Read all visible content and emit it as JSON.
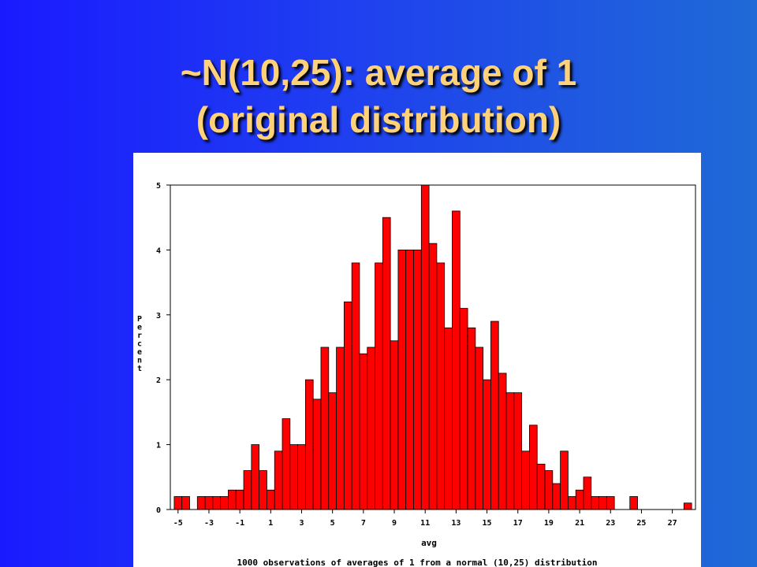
{
  "slide": {
    "title_line1": "~N(10,25): average of 1",
    "title_line2": "(original distribution)"
  },
  "colors": {
    "bar": "#ff0000",
    "bar_stroke": "#000000",
    "title": "#ffd27a"
  },
  "chart_data": {
    "type": "bar",
    "xlabel": "avg",
    "ylabel": "Percent",
    "footnote": "1000 observations of averages of 1 from a normal (10,25) distribution",
    "x_axis": {
      "min": -5.5,
      "max": 28.5,
      "ticks": [
        -5,
        -3,
        -1,
        1,
        3,
        5,
        7,
        9,
        11,
        13,
        15,
        17,
        19,
        21,
        23,
        25,
        27
      ]
    },
    "ylim": [
      0,
      5
    ],
    "y_ticks": [
      0,
      1,
      2,
      3,
      4,
      5
    ],
    "bin_width": 0.5,
    "bin_centers": [
      -5,
      -4.5,
      -4,
      -3.5,
      -3,
      -2.5,
      -2,
      -1.5,
      -1,
      -0.5,
      0,
      0.5,
      1,
      1.5,
      2,
      2.5,
      3,
      3.5,
      4,
      4.5,
      5,
      5.5,
      6,
      6.5,
      7,
      7.5,
      8,
      8.5,
      9,
      9.5,
      10,
      10.5,
      11,
      11.5,
      12,
      12.5,
      13,
      13.5,
      14,
      14.5,
      15,
      15.5,
      16,
      16.5,
      17,
      17.5,
      18,
      18.5,
      19,
      19.5,
      20,
      20.5,
      21,
      21.5,
      22,
      22.5,
      23,
      23.5,
      24,
      24.5,
      25,
      25.5,
      26,
      26.5,
      27,
      27.5,
      28
    ],
    "values": [
      0.2,
      0.2,
      0,
      0.2,
      0.2,
      0.2,
      0.2,
      0.3,
      0.3,
      0.6,
      1.0,
      0.6,
      0.3,
      0.9,
      1.4,
      1.0,
      1.0,
      2.0,
      1.7,
      2.5,
      1.8,
      2.5,
      3.2,
      3.8,
      2.4,
      2.5,
      3.8,
      4.5,
      2.6,
      4.0,
      4.0,
      4.0,
      5.0,
      4.1,
      3.8,
      2.8,
      4.6,
      3.1,
      2.8,
      2.5,
      2.0,
      2.9,
      2.1,
      1.8,
      1.8,
      0.9,
      1.3,
      0.7,
      0.6,
      0.4,
      0.9,
      0.2,
      0.3,
      0.5,
      0.2,
      0.2,
      0.2,
      0,
      0,
      0.2,
      0,
      0,
      0,
      0,
      0,
      0,
      0.1
    ]
  }
}
